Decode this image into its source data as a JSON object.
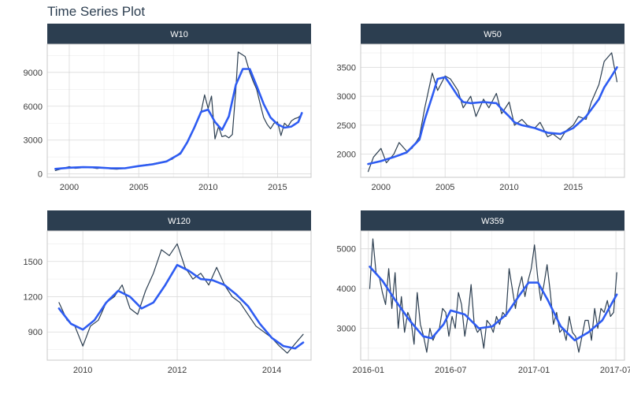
{
  "page": {
    "title": "Time Series Plot"
  },
  "colors": {
    "strip_bg": "#2c3e50",
    "strip_text": "#ffffff",
    "raw_line": "#2c3e50",
    "smooth_line": "#2e5cf2",
    "grid": "#d9d9d9",
    "panel_border": "#c8c8c8",
    "axis_text": "#3c3c3c"
  },
  "chart_data": [
    {
      "type": "line",
      "panel": "W10",
      "x_axis": "date",
      "xlim": [
        "1998-06-01",
        "2017-06-01"
      ],
      "ylim": [
        -300,
        11500
      ],
      "xticks": [
        {
          "label": "2000",
          "value": "2000-01-01"
        },
        {
          "label": "2005",
          "value": "2005-01-01"
        },
        {
          "label": "2010",
          "value": "2010-01-01"
        },
        {
          "label": "2015",
          "value": "2015-01-01"
        }
      ],
      "yticks": [
        0,
        3000,
        6000,
        9000
      ],
      "series": [
        {
          "role": "observed",
          "x": [
            "1999-01-01",
            "1999-06-01",
            "2000-01-01",
            "2000-06-01",
            "2001-01-01",
            "2001-06-01",
            "2002-01-01",
            "2002-06-01",
            "2003-01-01",
            "2003-06-01",
            "2004-01-01",
            "2004-06-01",
            "2005-01-01",
            "2005-06-01",
            "2006-01-01",
            "2006-06-01",
            "2007-01-01",
            "2007-06-01",
            "2008-01-01",
            "2008-06-01",
            "2009-01-01",
            "2009-04-01",
            "2009-07-01",
            "2009-10-01",
            "2010-01-01",
            "2010-04-01",
            "2010-07-01",
            "2010-10-01",
            "2011-01-01",
            "2011-04-01",
            "2011-07-01",
            "2011-10-01",
            "2012-01-01",
            "2012-03-01",
            "2012-06-01",
            "2012-09-01",
            "2013-01-01",
            "2013-04-01",
            "2013-07-01",
            "2013-10-01",
            "2014-01-01",
            "2014-04-01",
            "2014-07-01",
            "2014-10-01",
            "2015-01-01",
            "2015-04-01",
            "2015-07-01",
            "2015-10-01",
            "2016-01-01",
            "2016-04-01",
            "2016-07-01",
            "2016-10-01"
          ],
          "y": [
            300,
            450,
            650,
            500,
            550,
            600,
            480,
            550,
            450,
            420,
            480,
            550,
            700,
            800,
            900,
            1000,
            1150,
            1300,
            1900,
            2600,
            4000,
            4800,
            5500,
            7000,
            5800,
            6900,
            3100,
            4200,
            3300,
            3400,
            3200,
            3500,
            7500,
            10800,
            10600,
            10400,
            9000,
            8200,
            7500,
            6200,
            5000,
            4400,
            4000,
            4500,
            4600,
            3400,
            4500,
            4200,
            4700,
            4900,
            5000,
            5300
          ]
        },
        {
          "role": "smoothed",
          "x": [
            "1999-01-01",
            "2000-01-01",
            "2001-01-01",
            "2002-01-01",
            "2003-01-01",
            "2004-01-01",
            "2005-01-01",
            "2006-01-01",
            "2007-01-01",
            "2008-01-01",
            "2008-07-01",
            "2009-01-01",
            "2009-07-01",
            "2010-01-01",
            "2010-07-01",
            "2011-01-01",
            "2011-07-01",
            "2012-01-01",
            "2012-07-01",
            "2013-01-01",
            "2013-07-01",
            "2014-01-01",
            "2014-07-01",
            "2015-01-01",
            "2015-07-01",
            "2016-01-01",
            "2016-07-01",
            "2016-10-01"
          ],
          "y": [
            450,
            550,
            600,
            580,
            500,
            500,
            700,
            850,
            1100,
            1800,
            2800,
            4100,
            5500,
            5700,
            4600,
            3900,
            5100,
            7900,
            9300,
            9300,
            7800,
            6200,
            5000,
            4400,
            4100,
            4200,
            4600,
            5400
          ]
        }
      ]
    },
    {
      "type": "line",
      "panel": "W50",
      "x_axis": "date",
      "xlim": [
        "1998-06-01",
        "2019-01-01"
      ],
      "ylim": [
        1600,
        3900
      ],
      "xticks": [
        {
          "label": "2000",
          "value": "2000-01-01"
        },
        {
          "label": "2005",
          "value": "2005-01-01"
        },
        {
          "label": "2010",
          "value": "2010-01-01"
        },
        {
          "label": "2015",
          "value": "2015-01-01"
        }
      ],
      "yticks": [
        2000,
        2500,
        3000,
        3500
      ],
      "series": [
        {
          "role": "observed",
          "x": [
            "1999-01-01",
            "1999-06-01",
            "2000-01-01",
            "2000-06-01",
            "2001-01-01",
            "2001-06-01",
            "2002-01-01",
            "2002-06-01",
            "2003-01-01",
            "2003-06-01",
            "2004-01-01",
            "2004-06-01",
            "2005-01-01",
            "2005-06-01",
            "2006-01-01",
            "2006-06-01",
            "2007-01-01",
            "2007-06-01",
            "2008-01-01",
            "2008-06-01",
            "2009-01-01",
            "2009-06-01",
            "2010-01-01",
            "2010-06-01",
            "2011-01-01",
            "2011-06-01",
            "2012-01-01",
            "2012-06-01",
            "2013-01-01",
            "2013-06-01",
            "2014-01-01",
            "2014-06-01",
            "2015-01-01",
            "2015-06-01",
            "2016-01-01",
            "2016-06-01",
            "2017-01-01",
            "2017-06-01",
            "2018-01-01",
            "2018-06-01"
          ],
          "y": [
            1700,
            1950,
            2100,
            1850,
            2000,
            2200,
            2050,
            2100,
            2300,
            2800,
            3400,
            3100,
            3350,
            3300,
            3100,
            2800,
            3000,
            2650,
            2950,
            2800,
            3050,
            2700,
            2900,
            2500,
            2600,
            2500,
            2450,
            2550,
            2300,
            2350,
            2250,
            2400,
            2500,
            2650,
            2600,
            2900,
            3200,
            3600,
            3750,
            3250
          ]
        },
        {
          "role": "smoothed",
          "x": [
            "1999-01-01",
            "2000-01-01",
            "2001-01-01",
            "2002-01-01",
            "2003-01-01",
            "2003-06-01",
            "2004-01-01",
            "2004-06-01",
            "2005-01-01",
            "2005-06-01",
            "2006-01-01",
            "2006-06-01",
            "2007-01-01",
            "2008-01-01",
            "2009-01-01",
            "2009-06-01",
            "2010-01-01",
            "2010-06-01",
            "2011-01-01",
            "2012-01-01",
            "2013-01-01",
            "2014-01-01",
            "2015-01-01",
            "2016-01-01",
            "2017-01-01",
            "2017-06-01",
            "2018-01-01",
            "2018-06-01"
          ],
          "y": [
            1830,
            1880,
            1950,
            2030,
            2250,
            2600,
            3000,
            3300,
            3330,
            3200,
            3000,
            2900,
            2880,
            2900,
            2880,
            2780,
            2650,
            2550,
            2500,
            2450,
            2370,
            2350,
            2450,
            2650,
            2950,
            3150,
            3350,
            3500
          ]
        }
      ]
    },
    {
      "type": "line",
      "panel": "W120",
      "x_axis": "date",
      "xlim": [
        "2009-04-01",
        "2014-11-01"
      ],
      "ylim": [
        660,
        1760
      ],
      "xticks": [
        {
          "label": "2010",
          "value": "2010-01-01"
        },
        {
          "label": "2012",
          "value": "2012-01-01"
        },
        {
          "label": "2014",
          "value": "2014-01-01"
        }
      ],
      "yticks": [
        900,
        1200,
        1500
      ],
      "series": [
        {
          "role": "observed",
          "x": [
            "2009-07-01",
            "2009-09-01",
            "2009-11-01",
            "2010-01-01",
            "2010-03-01",
            "2010-05-01",
            "2010-07-01",
            "2010-09-01",
            "2010-11-01",
            "2011-01-01",
            "2011-03-01",
            "2011-05-01",
            "2011-07-01",
            "2011-09-01",
            "2011-11-01",
            "2012-01-01",
            "2012-03-01",
            "2012-05-01",
            "2012-07-01",
            "2012-09-01",
            "2012-11-01",
            "2013-01-01",
            "2013-03-01",
            "2013-05-01",
            "2013-07-01",
            "2013-09-01",
            "2013-11-01",
            "2014-01-01",
            "2014-03-01",
            "2014-05-01",
            "2014-07-01",
            "2014-09-01"
          ],
          "y": [
            1150,
            1000,
            950,
            780,
            950,
            1000,
            1150,
            1200,
            1300,
            1100,
            1050,
            1250,
            1400,
            1600,
            1550,
            1650,
            1450,
            1350,
            1400,
            1300,
            1450,
            1300,
            1200,
            1150,
            1050,
            950,
            900,
            850,
            780,
            720,
            800,
            880
          ]
        },
        {
          "role": "smoothed",
          "x": [
            "2009-07-01",
            "2009-10-01",
            "2010-01-01",
            "2010-04-01",
            "2010-07-01",
            "2010-10-01",
            "2011-01-01",
            "2011-04-01",
            "2011-07-01",
            "2011-10-01",
            "2012-01-01",
            "2012-04-01",
            "2012-07-01",
            "2012-10-01",
            "2013-01-01",
            "2013-04-01",
            "2013-07-01",
            "2013-10-01",
            "2014-01-01",
            "2014-04-01",
            "2014-07-01",
            "2014-09-01"
          ],
          "y": [
            1100,
            970,
            920,
            1000,
            1150,
            1250,
            1200,
            1100,
            1150,
            1300,
            1470,
            1420,
            1350,
            1340,
            1300,
            1220,
            1120,
            970,
            850,
            780,
            760,
            810
          ]
        }
      ]
    },
    {
      "type": "line",
      "panel": "W359",
      "x_axis": "date",
      "xlim": [
        "2015-12-15",
        "2017-07-20"
      ],
      "ylim": [
        2200,
        5450
      ],
      "xticks": [
        {
          "label": "2016-01",
          "value": "2016-01-01"
        },
        {
          "label": "2016-07",
          "value": "2016-07-01"
        },
        {
          "label": "2017-01",
          "value": "2017-01-01"
        },
        {
          "label": "2017-07",
          "value": "2017-07-01"
        }
      ],
      "yticks": [
        3000,
        4000,
        5000
      ],
      "series": [
        {
          "role": "observed",
          "x": [
            "2016-01-04",
            "2016-01-11",
            "2016-01-18",
            "2016-01-25",
            "2016-02-01",
            "2016-02-08",
            "2016-02-15",
            "2016-02-22",
            "2016-02-29",
            "2016-03-07",
            "2016-03-14",
            "2016-03-21",
            "2016-03-28",
            "2016-04-04",
            "2016-04-11",
            "2016-04-18",
            "2016-04-25",
            "2016-05-02",
            "2016-05-09",
            "2016-05-16",
            "2016-05-23",
            "2016-05-30",
            "2016-06-06",
            "2016-06-13",
            "2016-06-20",
            "2016-06-27",
            "2016-07-04",
            "2016-07-11",
            "2016-07-18",
            "2016-07-25",
            "2016-08-01",
            "2016-08-08",
            "2016-08-15",
            "2016-08-22",
            "2016-08-29",
            "2016-09-05",
            "2016-09-12",
            "2016-09-19",
            "2016-09-26",
            "2016-10-03",
            "2016-10-10",
            "2016-10-17",
            "2016-10-24",
            "2016-10-31",
            "2016-11-07",
            "2016-11-14",
            "2016-11-21",
            "2016-11-28",
            "2016-12-05",
            "2016-12-12",
            "2016-12-19",
            "2016-12-26",
            "2017-01-02",
            "2017-01-09",
            "2017-01-16",
            "2017-01-23",
            "2017-01-30",
            "2017-02-06",
            "2017-02-13",
            "2017-02-20",
            "2017-02-27",
            "2017-03-06",
            "2017-03-13",
            "2017-03-20",
            "2017-03-27",
            "2017-04-03",
            "2017-04-10",
            "2017-04-17",
            "2017-04-24",
            "2017-05-01",
            "2017-05-08",
            "2017-05-15",
            "2017-05-22",
            "2017-05-29",
            "2017-06-05",
            "2017-06-12",
            "2017-06-19",
            "2017-06-26",
            "2017-07-03"
          ],
          "y": [
            4000,
            5250,
            4400,
            4300,
            3900,
            3600,
            4500,
            3500,
            4400,
            3000,
            3800,
            2900,
            3400,
            3200,
            2600,
            3900,
            3100,
            2800,
            2400,
            3000,
            2700,
            2900,
            3000,
            3500,
            3400,
            2800,
            3300,
            3000,
            3900,
            3600,
            2800,
            3300,
            4100,
            3100,
            2900,
            3000,
            2500,
            3200,
            3100,
            2900,
            3300,
            3100,
            3400,
            3300,
            4500,
            4000,
            3500,
            4000,
            4300,
            3800,
            4200,
            4500,
            5100,
            4300,
            3700,
            4100,
            4600,
            3900,
            3100,
            3400,
            2900,
            3000,
            2700,
            3300,
            2900,
            2800,
            2400,
            2800,
            3200,
            3200,
            2700,
            3500,
            3000,
            3500,
            3400,
            3700,
            3300,
            3400,
            4400
          ]
        },
        {
          "role": "smoothed",
          "x": [
            "2016-01-04",
            "2016-02-01",
            "2016-03-01",
            "2016-04-01",
            "2016-05-01",
            "2016-05-20",
            "2016-06-15",
            "2016-07-01",
            "2016-08-01",
            "2016-09-01",
            "2016-10-01",
            "2016-11-01",
            "2016-12-01",
            "2016-12-20",
            "2017-01-10",
            "2017-02-01",
            "2017-03-01",
            "2017-04-01",
            "2017-05-01",
            "2017-06-01",
            "2017-07-03"
          ],
          "y": [
            4550,
            4200,
            3700,
            3200,
            2800,
            2750,
            3100,
            3450,
            3350,
            3000,
            3050,
            3350,
            3850,
            4150,
            4150,
            3700,
            3050,
            2700,
            2900,
            3200,
            3850
          ]
        }
      ]
    }
  ]
}
